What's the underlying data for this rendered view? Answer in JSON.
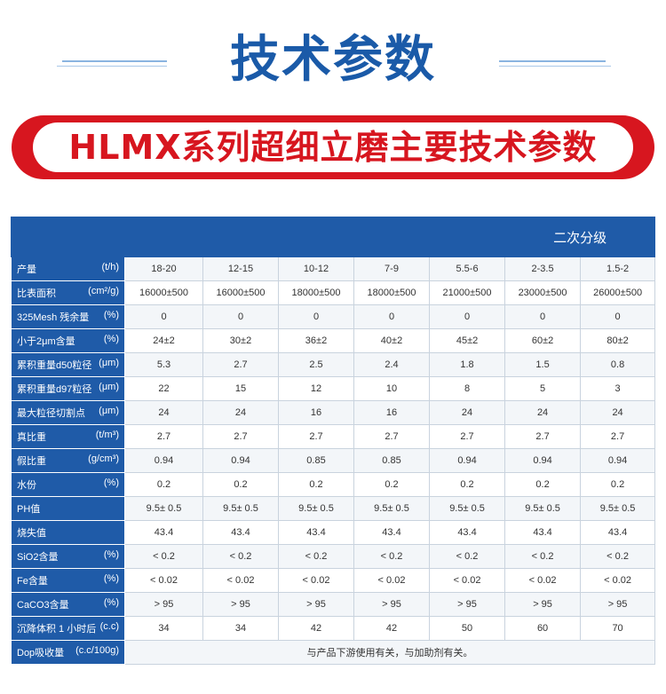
{
  "title": "技术参数",
  "subtitle": "HLMX系列超细立磨主要技术参数",
  "table": {
    "group_header": "二次分级",
    "rows": [
      {
        "name": "产量",
        "unit": "(t/h)",
        "values": [
          "18-20",
          "12-15",
          "10-12",
          "7-9",
          "5.5-6",
          "2-3.5",
          "1.5-2"
        ]
      },
      {
        "name": "比表面积",
        "unit": "(cm²/g)",
        "values": [
          "16000±500",
          "16000±500",
          "18000±500",
          "18000±500",
          "21000±500",
          "23000±500",
          "26000±500"
        ]
      },
      {
        "name": "325Mesh 残余量",
        "unit": "(%)",
        "values": [
          "0",
          "0",
          "0",
          "0",
          "0",
          "0",
          "0"
        ]
      },
      {
        "name": "小于2μm含量",
        "unit": "(%)",
        "values": [
          "24±2",
          "30±2",
          "36±2",
          "40±2",
          "45±2",
          "60±2",
          "80±2"
        ]
      },
      {
        "name": "累积重量d50粒径",
        "unit": "(μm)",
        "values": [
          "5.3",
          "2.7",
          "2.5",
          "2.4",
          "1.8",
          "1.5",
          "0.8"
        ]
      },
      {
        "name": "累积重量d97粒径",
        "unit": "(μm)",
        "values": [
          "22",
          "15",
          "12",
          "10",
          "8",
          "5",
          "3"
        ]
      },
      {
        "name": "最大粒径切割点",
        "unit": "(μm)",
        "values": [
          "24",
          "24",
          "16",
          "16",
          "24",
          "24",
          "24"
        ]
      },
      {
        "name": "真比重",
        "unit": "(t/m³)",
        "values": [
          "2.7",
          "2.7",
          "2.7",
          "2.7",
          "2.7",
          "2.7",
          "2.7"
        ]
      },
      {
        "name": "假比重",
        "unit": "(g/cm³)",
        "values": [
          "0.94",
          "0.94",
          "0.85",
          "0.85",
          "0.94",
          "0.94",
          "0.94"
        ]
      },
      {
        "name": "水份",
        "unit": "(%)",
        "values": [
          "0.2",
          "0.2",
          "0.2",
          "0.2",
          "0.2",
          "0.2",
          "0.2"
        ]
      },
      {
        "name": "PH值",
        "unit": "",
        "values": [
          "9.5± 0.5",
          "9.5± 0.5",
          "9.5± 0.5",
          "9.5± 0.5",
          "9.5± 0.5",
          "9.5± 0.5",
          "9.5± 0.5"
        ]
      },
      {
        "name": "烧失值",
        "unit": "",
        "values": [
          "43.4",
          "43.4",
          "43.4",
          "43.4",
          "43.4",
          "43.4",
          "43.4"
        ]
      },
      {
        "name": "SiO2含量",
        "unit": "(%)",
        "values": [
          "< 0.2",
          "< 0.2",
          "< 0.2",
          "< 0.2",
          "< 0.2",
          "< 0.2",
          "< 0.2"
        ]
      },
      {
        "name": "Fe含量",
        "unit": "(%)",
        "values": [
          "< 0.02",
          "< 0.02",
          "< 0.02",
          "< 0.02",
          "< 0.02",
          "< 0.02",
          "< 0.02"
        ]
      },
      {
        "name": "CaCO3含量",
        "unit": "(%)",
        "values": [
          "> 95",
          "> 95",
          "> 95",
          "> 95",
          "> 95",
          "> 95",
          "> 95"
        ]
      },
      {
        "name": "沉降体积 1 小时后",
        "unit": "(c.c)",
        "values": [
          "34",
          "34",
          "42",
          "42",
          "50",
          "60",
          "70"
        ]
      }
    ],
    "last_row": {
      "name": "Dop吸收量",
      "unit": "(c.c/100g)",
      "note": "与产品下游使用有关，与加助剂有关。"
    }
  }
}
